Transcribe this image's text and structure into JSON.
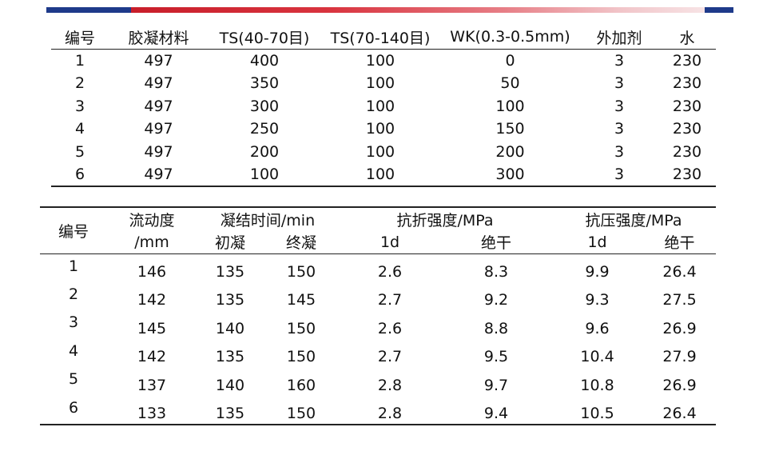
{
  "colors": {
    "bar_blue": "#1e3a8a",
    "bar_red": "#c81e2a",
    "rule": "#222222"
  },
  "table1": {
    "headers": [
      "编号",
      "胶凝材料",
      "TS(40-70目)",
      "TS(70-140目)",
      "WK(0.3-0.5mm)",
      "外加剂",
      "水"
    ],
    "rows": [
      [
        "1",
        "497",
        "400",
        "100",
        "0",
        "3",
        "230"
      ],
      [
        "2",
        "497",
        "350",
        "100",
        "50",
        "3",
        "230"
      ],
      [
        "3",
        "497",
        "300",
        "100",
        "100",
        "3",
        "230"
      ],
      [
        "4",
        "497",
        "250",
        "100",
        "150",
        "3",
        "230"
      ],
      [
        "5",
        "497",
        "200",
        "100",
        "200",
        "3",
        "230"
      ],
      [
        "6",
        "497",
        "100",
        "100",
        "300",
        "3",
        "230"
      ]
    ]
  },
  "table2": {
    "header_row1": {
      "id": "编号",
      "flow_line1": "流动度",
      "flow_line2": "/mm",
      "setting_time": "凝结时间/min",
      "flexural": "抗折强度/MPa",
      "compressive": "抗压强度/MPa"
    },
    "header_row2": {
      "initial_set": "初凝",
      "final_set": "终凝",
      "flex_1d": "1d",
      "flex_dry": "绝干",
      "comp_1d": "1d",
      "comp_dry": "绝干"
    },
    "rows": [
      [
        "1",
        "146",
        "135",
        "150",
        "2.6",
        "8.3",
        "9.9",
        "26.4"
      ],
      [
        "2",
        "142",
        "135",
        "145",
        "2.7",
        "9.2",
        "9.3",
        "27.5"
      ],
      [
        "3",
        "145",
        "140",
        "150",
        "2.6",
        "8.8",
        "9.6",
        "26.9"
      ],
      [
        "4",
        "142",
        "135",
        "150",
        "2.7",
        "9.5",
        "10.4",
        "27.9"
      ],
      [
        "5",
        "137",
        "140",
        "160",
        "2.8",
        "9.7",
        "10.8",
        "26.9"
      ],
      [
        "6",
        "133",
        "135",
        "150",
        "2.8",
        "9.4",
        "10.5",
        "26.4"
      ]
    ]
  }
}
